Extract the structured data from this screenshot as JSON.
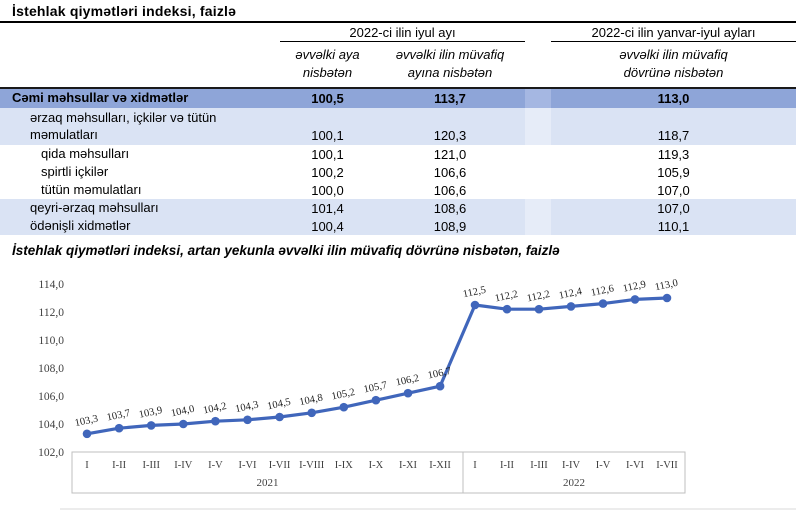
{
  "table": {
    "title": "İstehlak qiymətləri indeksi, faizlə",
    "col_groups": [
      {
        "label": "2022-ci ilin iyul ayı"
      },
      {
        "label": "2022-ci ilin yanvar-iyul ayları"
      }
    ],
    "sub_headers": [
      [
        "əvvəlki aya",
        "nisbətən"
      ],
      [
        "əvvəlki ilin müvafiq",
        "ayına nisbətən"
      ],
      [
        "əvvəlki ilin müvafiq",
        "dövrünə nisbətən"
      ]
    ],
    "rows": [
      {
        "label": "Cəmi məhsullar və xidmətlər",
        "values": [
          "100,5",
          "113,7",
          "113,0"
        ]
      },
      {
        "label": "ərzaq məhsulları, içkilər və tütün məmulatları",
        "values": [
          "100,1",
          "120,3",
          "118,7"
        ]
      },
      {
        "label": "qida məhsulları",
        "values": [
          "100,1",
          "121,0",
          "119,3"
        ]
      },
      {
        "label": "spirtli içkilər",
        "values": [
          "100,2",
          "106,6",
          "105,9"
        ]
      },
      {
        "label": "tütün məmulatları",
        "values": [
          "100,0",
          "106,6",
          "107,0"
        ]
      },
      {
        "label": "qeyri-ərzaq məhsulları",
        "values": [
          "101,4",
          "108,6",
          "107,0"
        ]
      },
      {
        "label": "ödənişli xidmətlər",
        "values": [
          "100,4",
          "108,9",
          "110,1"
        ]
      }
    ]
  },
  "chart": {
    "title": "İstehlak qiymətləri indeksi, artan yekunla əvvəlki ilin müvafiq dövrünə nisbətən, faizlə"
  },
  "chart_data": {
    "type": "line",
    "categories": [
      "I",
      "I-II",
      "I-III",
      "I-IV",
      "I-V",
      "I-VI",
      "I-VII",
      "I-VIII",
      "I-IX",
      "I-X",
      "I-XI",
      "I-XII",
      "I",
      "I-II",
      "I-III",
      "I-IV",
      "I-V",
      "I-VI",
      "I-VII"
    ],
    "year_groups": [
      {
        "label": "2021",
        "count": 12
      },
      {
        "label": "2022",
        "count": 7
      }
    ],
    "values": [
      103.3,
      103.7,
      103.9,
      104.0,
      104.2,
      104.3,
      104.5,
      104.8,
      105.2,
      105.7,
      106.2,
      106.7,
      112.5,
      112.2,
      112.2,
      112.4,
      112.6,
      112.9,
      113.0
    ],
    "point_labels": [
      "103,3",
      "103,7",
      "103,9",
      "104,0",
      "104,2",
      "104,3",
      "104,5",
      "104,8",
      "105,2",
      "105,7",
      "106,2",
      "106,7",
      "112,5",
      "112,2",
      "112,2",
      "112,4",
      "112,6",
      "112,9",
      "113,0"
    ],
    "ylim": [
      102,
      114
    ],
    "ytick_step": 2,
    "ytick_labels": [
      "102,0",
      "104,0",
      "106,0",
      "108,0",
      "110,0",
      "112,0",
      "114,0"
    ],
    "grid": false,
    "legend": false,
    "line_color": "#4066bb",
    "axis_color": "#bfbfbf",
    "label_color": "#1f1f1f",
    "tick_color": "#3f3f3f"
  },
  "colors": {
    "total_row_bg": "#8ea5d8",
    "band_row_bg": "#dae3f4"
  }
}
